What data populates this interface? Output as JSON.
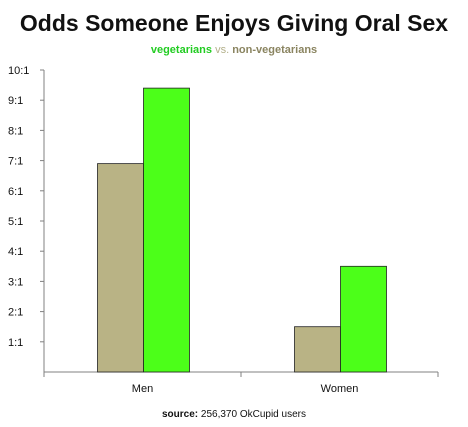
{
  "chart_data": {
    "type": "bar",
    "title": "Odds Someone Enjoys Giving Oral Sex",
    "subtitle": {
      "veg": "vegetarians",
      "vs": "vs.",
      "nonveg": "non-vegetarians"
    },
    "categories": [
      "Men",
      "Women"
    ],
    "series": [
      {
        "name": "non-vegetarians",
        "color": "#b9b385",
        "values": [
          6.9,
          1.5
        ]
      },
      {
        "name": "vegetarians",
        "color": "#4cff19",
        "values": [
          9.4,
          3.5
        ]
      }
    ],
    "y_ticks": [
      "10:1",
      "9:1",
      "8:1",
      "7:1",
      "6:1",
      "5:1",
      "4:1",
      "3:1",
      "2:1",
      "1:1"
    ],
    "y_tick_values": [
      10,
      9,
      8,
      7,
      6,
      5,
      4,
      3,
      2,
      1
    ],
    "ylim": [
      0,
      10
    ],
    "grid": false,
    "legend": "subtitle",
    "source_label": "source:",
    "source_text": "256,370 OkCupid users"
  }
}
